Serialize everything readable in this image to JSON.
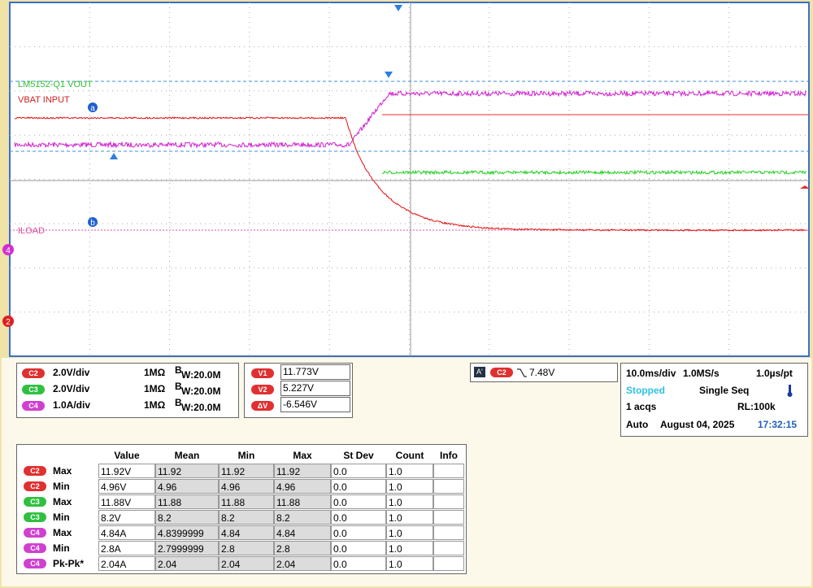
{
  "screen": {
    "trace_labels": [
      "LM5152-Q1 VOUT",
      "VBAT INPUT",
      "ILOAD"
    ],
    "cursor_markers": [
      "a",
      "b"
    ],
    "channel_markers": [
      "4",
      "2"
    ]
  },
  "channels": [
    {
      "badge": "C2",
      "scale": "2.0V/div",
      "impedance": "1MΩ",
      "bw_b": "B",
      "bw_rest": "W:20.0M"
    },
    {
      "badge": "C3",
      "scale": "2.0V/div",
      "impedance": "1MΩ",
      "bw_b": "B",
      "bw_rest": "W:20.0M"
    },
    {
      "badge": "C4",
      "scale": "1.0A/div",
      "impedance": "1MΩ",
      "bw_b": "B",
      "bw_rest": "W:20.0M"
    }
  ],
  "cursors": [
    {
      "badge": "V1",
      "value": "11.773V"
    },
    {
      "badge": "V2",
      "value": "5.227V"
    },
    {
      "badge": "ΔV",
      "value": "-6.546V"
    }
  ],
  "trigger": {
    "source": "A'",
    "channel": "C2",
    "level": "7.48V"
  },
  "timebase": {
    "scale": "10.0ms/div",
    "rate": "1.0MS/s",
    "resolution": "1.0µs/pt",
    "state": "Stopped",
    "mode": "Single Seq",
    "acqs": "1 acqs",
    "record": "RL:100k",
    "trigger_mode": "Auto",
    "date": "August 04, 2025",
    "time": "17:32:15"
  },
  "measurements": {
    "header": [
      "Value",
      "Mean",
      "Min",
      "Max",
      "St Dev",
      "Count",
      "Info"
    ],
    "rows": [
      [
        "C2",
        "Max",
        "11.92V",
        "11.92",
        "11.92",
        "11.92",
        "0.0",
        "1.0",
        ""
      ],
      [
        "C2",
        "Min",
        "4.96V",
        "4.96",
        "4.96",
        "4.96",
        "0.0",
        "1.0",
        ""
      ],
      [
        "C3",
        "Max",
        "11.88V",
        "11.88",
        "11.88",
        "11.88",
        "0.0",
        "1.0",
        ""
      ],
      [
        "C3",
        "Min",
        "8.2V",
        "8.2",
        "8.2",
        "8.2",
        "0.0",
        "1.0",
        ""
      ],
      [
        "C4",
        "Max",
        "4.84A",
        "4.8399999",
        "4.84",
        "4.84",
        "0.0",
        "1.0",
        ""
      ],
      [
        "C4",
        "Min",
        "2.8A",
        "2.7999999",
        "2.8",
        "2.8",
        "0.0",
        "1.0",
        ""
      ],
      [
        "C4",
        "Pk-Pk*",
        "2.04A",
        "2.04",
        "2.04",
        "2.04",
        "0.0",
        "1.0",
        ""
      ]
    ]
  }
}
